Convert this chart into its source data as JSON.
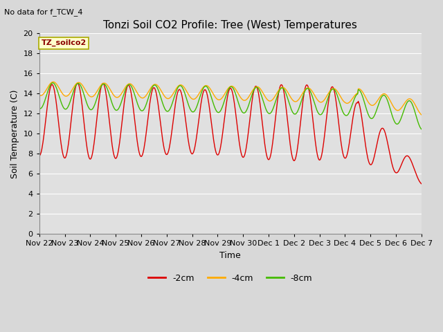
{
  "title": "Tonzi Soil CO2 Profile: Tree (West) Temperatures",
  "subtitle": "No data for f_TCW_4",
  "ylabel": "Soil Temperature (C)",
  "xlabel": "Time",
  "legend_label": "TZ_soilco2",
  "ylim": [
    0,
    20
  ],
  "yticks": [
    0,
    2,
    4,
    6,
    8,
    10,
    12,
    14,
    16,
    18,
    20
  ],
  "xtick_labels": [
    "Nov 22",
    "Nov 23",
    "Nov 24",
    "Nov 25",
    "Nov 26",
    "Nov 27",
    "Nov 28",
    "Nov 29",
    "Nov 30",
    "Dec 1",
    "Dec 2",
    "Dec 3",
    "Dec 4",
    "Dec 5",
    "Dec 6",
    "Dec 7"
  ],
  "line_colors": {
    "2cm": "#dd0000",
    "4cm": "#ffaa00",
    "8cm": "#44bb00"
  },
  "line_labels": {
    "2cm": "-2cm",
    "4cm": "-4cm",
    "8cm": "-8cm"
  },
  "fig_bg_color": "#d8d8d8",
  "plot_bg_color": "#e0e0e0",
  "grid_color": "#ffffff",
  "title_fontsize": 11,
  "axis_fontsize": 9,
  "tick_fontsize": 8
}
